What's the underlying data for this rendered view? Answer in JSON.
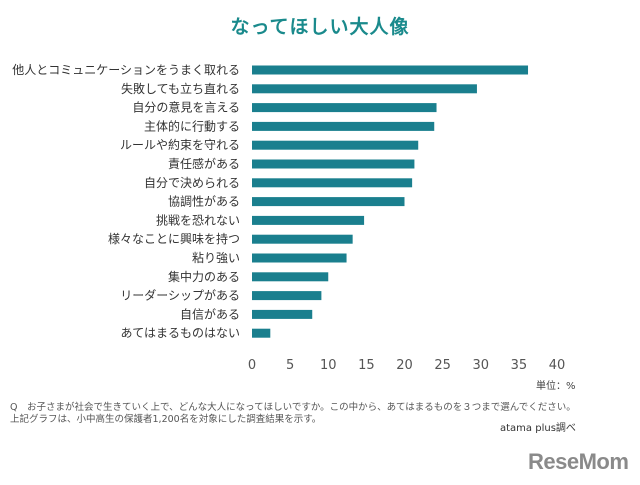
{
  "title": "なってほしい大人像",
  "unit_label": "単位：%",
  "notes": {
    "question": "Q　お子さまが社会で生きていく上で、どんな大人になってほしいですか。この中から、あてはまるものを３つまで選んでください。",
    "source": "上記グラフは、小中高生の保護者1,200名を対象にした調査結果を示す。"
  },
  "credit": "atama plus調べ",
  "logo": "ReseMom",
  "colors": {
    "bar": "#1a7f8e",
    "title": "#1a8a8c"
  },
  "chart_data": {
    "type": "bar",
    "orientation": "horizontal",
    "title": "なってほしい大人像",
    "categories": [
      "他人とコミュニケーションをうまく取れる",
      "失敗しても立ち直れる",
      "自分の意見を言える",
      "主体的に行動する",
      "ルールや約束を守れる",
      "責任感がある",
      "自分で決められる",
      "協調性がある",
      "挑戦を恐れない",
      "様々なことに興味を持つ",
      "粘り強い",
      "集中力のある",
      "リーダーシップがある",
      "自信がある",
      "あてはまるものはない"
    ],
    "values": [
      36.2,
      29.5,
      24.2,
      23.9,
      21.8,
      21.3,
      21.0,
      20.0,
      14.7,
      13.2,
      12.4,
      10.0,
      9.1,
      7.9,
      2.4
    ],
    "xlim": [
      0,
      40
    ],
    "xticks": [
      0,
      5,
      10,
      15,
      20,
      25,
      30,
      35,
      40
    ],
    "xlabel": "",
    "ylabel": "",
    "grid": false,
    "legend": "none"
  }
}
